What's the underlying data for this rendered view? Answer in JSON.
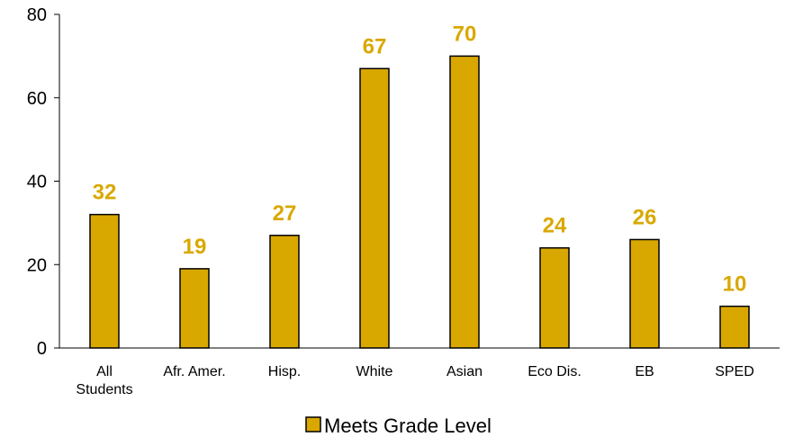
{
  "chart_data": {
    "type": "bar",
    "categories": [
      [
        "All",
        "Students"
      ],
      [
        "Afr. Amer."
      ],
      [
        "Hisp."
      ],
      [
        "White"
      ],
      [
        "Asian"
      ],
      [
        "Eco Dis."
      ],
      [
        "EB"
      ],
      [
        "SPED"
      ]
    ],
    "series": [
      {
        "name": "Meets Grade Level",
        "values": [
          32,
          19,
          27,
          67,
          70,
          24,
          26,
          10
        ]
      }
    ],
    "yticks": [
      "0",
      "20",
      "40",
      "60",
      "80"
    ],
    "ylim": [
      0,
      80
    ],
    "grid": false,
    "legend": "bottom",
    "colors": {
      "bar": "#D9A800",
      "bar_stroke": "#000000",
      "label": "#D9A800"
    }
  }
}
